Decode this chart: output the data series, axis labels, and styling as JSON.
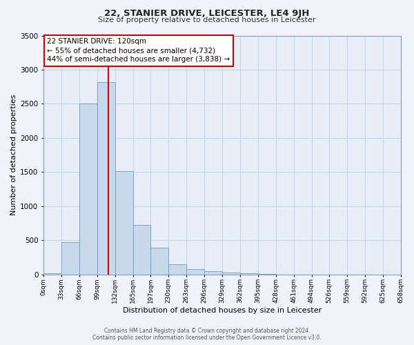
{
  "title": "22, STANIER DRIVE, LEICESTER, LE4 9JH",
  "subtitle": "Size of property relative to detached houses in Leicester",
  "xlabel": "Distribution of detached houses by size in Leicester",
  "ylabel": "Number of detached properties",
  "bar_edges": [
    0,
    33,
    66,
    99,
    132,
    165,
    197,
    230,
    263,
    296,
    329,
    362,
    395,
    428,
    461,
    494,
    526,
    559,
    592,
    625,
    658
  ],
  "bar_heights": [
    20,
    475,
    2500,
    2820,
    1510,
    720,
    390,
    150,
    80,
    50,
    30,
    20,
    10,
    0,
    0,
    0,
    0,
    0,
    0,
    0
  ],
  "bar_color": "#c9d9ed",
  "bar_edge_color": "#7098c4",
  "vline_x": 120,
  "vline_color": "#cc0000",
  "annotation_title": "22 STANIER DRIVE: 120sqm",
  "annotation_line1": "← 55% of detached houses are smaller (4,732)",
  "annotation_line2": "44% of semi-detached houses are larger (3,838) →",
  "annotation_box_color": "#ffffff",
  "annotation_box_edge": "#cc0000",
  "ylim": [
    0,
    3500
  ],
  "xlim": [
    0,
    658
  ],
  "tick_labels": [
    "0sqm",
    "33sqm",
    "66sqm",
    "99sqm",
    "132sqm",
    "165sqm",
    "197sqm",
    "230sqm",
    "263sqm",
    "296sqm",
    "329sqm",
    "362sqm",
    "395sqm",
    "428sqm",
    "461sqm",
    "494sqm",
    "526sqm",
    "559sqm",
    "592sqm",
    "625sqm",
    "658sqm"
  ],
  "tick_positions": [
    0,
    33,
    66,
    99,
    132,
    165,
    197,
    230,
    263,
    296,
    329,
    362,
    395,
    428,
    461,
    494,
    526,
    559,
    592,
    625,
    658
  ],
  "footer_line1": "Contains HM Land Registry data © Crown copyright and database right 2024.",
  "footer_line2": "Contains public sector information licensed under the Open Government Licence v3.0.",
  "bg_color": "#f0f4fa",
  "plot_bg_color": "#e8eef8",
  "grid_color": "#c8d4e8",
  "title_fontsize": 9.5,
  "subtitle_fontsize": 8,
  "ylabel_fontsize": 8,
  "xlabel_fontsize": 8,
  "tick_fontsize": 6.5,
  "ytick_fontsize": 7.5,
  "footer_fontsize": 5.5
}
